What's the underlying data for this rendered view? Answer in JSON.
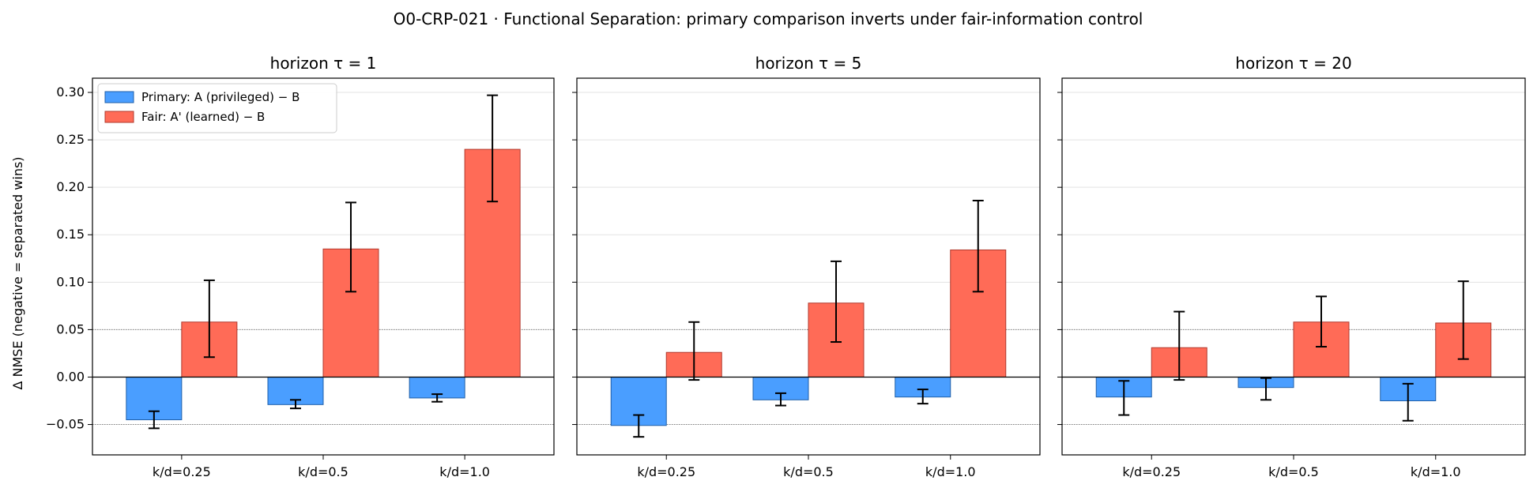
{
  "figure": {
    "suptitle": "O0-CRP-021 · Functional Separation: primary comparison inverts under fair-information control"
  },
  "colors": {
    "primary_fill": "#4a9eff",
    "primary_edge": "#1f5fa8",
    "fair_fill": "#ff6b57",
    "fair_edge": "#b03a2e",
    "grid": "#e3e3e3",
    "reference_line": "#888888",
    "zero_line": "#000000"
  },
  "chart_data": [
    {
      "type": "bar",
      "title": "horizon τ = 1",
      "ylabel": "Δ NMSE (negative = separated wins)",
      "categories": [
        "k/d=0.25",
        "k/d=0.5",
        "k/d=1.0"
      ],
      "ylim": [
        -0.082,
        0.315
      ],
      "yticks": [
        -0.05,
        0.0,
        0.05,
        0.1,
        0.15,
        0.2,
        0.25,
        0.3
      ],
      "ytick_labels": [
        "−0.05",
        "0.00",
        "0.05",
        "0.10",
        "0.15",
        "0.20",
        "0.25",
        "0.30"
      ],
      "grid": "horizontal",
      "reference_lines": [
        -0.05,
        0.05
      ],
      "legend": "top-left",
      "series": [
        {
          "name": "Primary: A (privileged) − B",
          "values": [
            -0.045,
            -0.029,
            -0.022
          ],
          "err_low": [
            -0.054,
            -0.033,
            -0.026
          ],
          "err_high": [
            -0.036,
            -0.024,
            -0.018
          ]
        },
        {
          "name": "Fair: A' (learned) − B",
          "values": [
            0.058,
            0.135,
            0.24
          ],
          "err_low": [
            0.021,
            0.09,
            0.185
          ],
          "err_high": [
            0.102,
            0.184,
            0.297
          ]
        }
      ]
    },
    {
      "type": "bar",
      "title": "horizon τ = 5",
      "ylabel": "",
      "categories": [
        "k/d=0.25",
        "k/d=0.5",
        "k/d=1.0"
      ],
      "ylim": [
        -0.082,
        0.315
      ],
      "yticks": [
        -0.05,
        0.0,
        0.05,
        0.1,
        0.15,
        0.2,
        0.25,
        0.3
      ],
      "ytick_labels": [],
      "grid": "horizontal",
      "reference_lines": [
        -0.05,
        0.05
      ],
      "legend": "none",
      "series": [
        {
          "name": "Primary: A (privileged) − B",
          "values": [
            -0.051,
            -0.024,
            -0.021
          ],
          "err_low": [
            -0.063,
            -0.03,
            -0.028
          ],
          "err_high": [
            -0.04,
            -0.017,
            -0.013
          ]
        },
        {
          "name": "Fair: A' (learned) − B",
          "values": [
            0.026,
            0.078,
            0.134
          ],
          "err_low": [
            -0.003,
            0.037,
            0.09
          ],
          "err_high": [
            0.058,
            0.122,
            0.186
          ]
        }
      ]
    },
    {
      "type": "bar",
      "title": "horizon τ = 20",
      "ylabel": "",
      "categories": [
        "k/d=0.25",
        "k/d=0.5",
        "k/d=1.0"
      ],
      "ylim": [
        -0.082,
        0.315
      ],
      "yticks": [
        -0.05,
        0.0,
        0.05,
        0.1,
        0.15,
        0.2,
        0.25,
        0.3
      ],
      "ytick_labels": [],
      "grid": "horizontal",
      "reference_lines": [
        -0.05,
        0.05
      ],
      "legend": "none",
      "series": [
        {
          "name": "Primary: A (privileged) − B",
          "values": [
            -0.021,
            -0.011,
            -0.025
          ],
          "err_low": [
            -0.04,
            -0.024,
            -0.046
          ],
          "err_high": [
            -0.004,
            -0.001,
            -0.007
          ]
        },
        {
          "name": "Fair: A' (learned) − B",
          "values": [
            0.031,
            0.058,
            0.057
          ],
          "err_low": [
            -0.003,
            0.032,
            0.019
          ],
          "err_high": [
            0.069,
            0.085,
            0.101
          ]
        }
      ]
    }
  ]
}
